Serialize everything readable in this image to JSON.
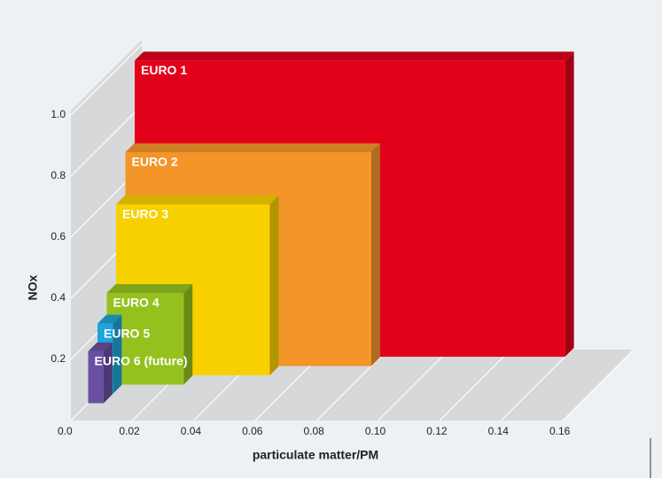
{
  "chart_data": {
    "type": "bar3d",
    "xlabel": "particulate matter/PM",
    "ylabel": "NOx",
    "categories": [
      "EURO 1",
      "EURO 2",
      "EURO 3",
      "EURO 4",
      "EURO 5",
      "EURO 6 (future)"
    ],
    "pm": [
      0.14,
      0.08,
      0.05,
      0.025,
      0.005,
      0.005
    ],
    "values": [
      0.97,
      0.7,
      0.56,
      0.3,
      0.23,
      0.17
    ],
    "colors": [
      "#e2001a",
      "#f39529",
      "#f7d000",
      "#95c11f",
      "#1fa3d9",
      "#6a4fa0"
    ],
    "xlim": [
      0,
      0.16
    ],
    "xticks": [
      {
        "value": 0,
        "label": "0.0"
      },
      0.02,
      0.04,
      0.06,
      0.08,
      {
        "value": 0.1,
        "label": "0.10"
      },
      0.12,
      0.14,
      0.16
    ],
    "ylim": [
      0,
      1.0
    ],
    "yticks": [
      0.2,
      0.4,
      0.6,
      0.8,
      {
        "value": 1,
        "label": "1.0"
      }
    ],
    "grid": true
  }
}
